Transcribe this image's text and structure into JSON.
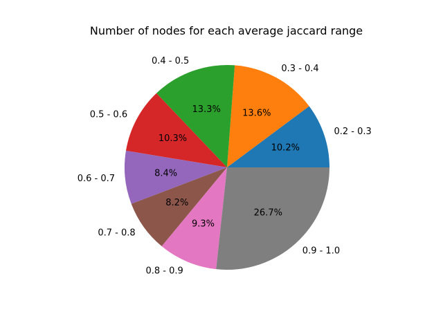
{
  "chart_data": {
    "type": "pie",
    "title": "Number of nodes for each average jaccard range",
    "start_angle": 0,
    "direction": "counterclockwise",
    "slices": [
      {
        "label": "0.2 - 0.3",
        "percent": 10.2,
        "percent_label": "10.2%",
        "color": "#1f77b4"
      },
      {
        "label": "0.3 - 0.4",
        "percent": 13.6,
        "percent_label": "13.6%",
        "color": "#ff7f0e"
      },
      {
        "label": "0.4 - 0.5",
        "percent": 13.3,
        "percent_label": "13.3%",
        "color": "#2ca02c"
      },
      {
        "label": "0.5 - 0.6",
        "percent": 10.3,
        "percent_label": "10.3%",
        "color": "#d62728"
      },
      {
        "label": "0.6 - 0.7",
        "percent": 8.4,
        "percent_label": "8.4%",
        "color": "#9467bd"
      },
      {
        "label": "0.7 - 0.8",
        "percent": 8.2,
        "percent_label": "8.2%",
        "color": "#8c564b"
      },
      {
        "label": "0.8 - 0.9",
        "percent": 9.3,
        "percent_label": "9.3%",
        "color": "#e377c2"
      },
      {
        "label": "0.9 - 1.0",
        "percent": 26.7,
        "percent_label": "26.7%",
        "color": "#7f7f7f"
      }
    ]
  }
}
